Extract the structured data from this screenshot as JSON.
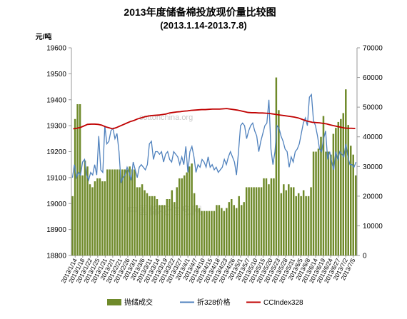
{
  "chart_data": {
    "type": "bar+line",
    "title": "2013年度储备棉投放现价量比较图",
    "subtitle": "(2013.1.14-2013.7.8)",
    "y_left_label": "元/吨",
    "y_left_ticks": [
      18800,
      18900,
      19000,
      19100,
      19200,
      19300,
      19400,
      19500,
      19600
    ],
    "y_right_ticks": [
      0,
      10000,
      20000,
      30000,
      40000,
      50000,
      60000,
      70000
    ],
    "ylim_left": [
      18800,
      19600
    ],
    "ylim_right": [
      0,
      70000
    ],
    "x_tick_labels": [
      "2013/1/14",
      "2013/1/18",
      "2013/1/22",
      "2013/1/25",
      "2013/1/31",
      "2013/2/1",
      "2013/2/21",
      "2013/2/26",
      "2013/3/1",
      "2013/3/6",
      "2013/3/11",
      "2013/3/14",
      "2013/3/19",
      "2013/3/22",
      "2013/3/27",
      "2013/4/1",
      "2013/4/7",
      "2013/4/10",
      "2013/4/15",
      "2013/4/18",
      "2013/4/23",
      "2013/4/26",
      "2013/5/1",
      "2013/5/7",
      "2013/5/10",
      "2013/5/15",
      "2013/5/20",
      "2013/5/23",
      "2013/5/28",
      "2013/5/31",
      "2013/6/5",
      "2013/6/8",
      "2013/6/14",
      "2013/6/19",
      "2013/6/24",
      "2013/6/27",
      "2013/7/2",
      "2013/7/5"
    ],
    "legend": [
      "抛储成交",
      "折328价格",
      "CCIndex328"
    ],
    "legend_position": "bottom",
    "colors": {
      "bars": "#6f8a2a",
      "price": "#4f81bd",
      "index": "#c00000",
      "axis": "#999999"
    },
    "volume": [
      20000,
      46000,
      51000,
      51000,
      27000,
      32000,
      30000,
      24000,
      23000,
      25000,
      26000,
      26000,
      25000,
      25000,
      29000,
      29000,
      29000,
      29000,
      29000,
      29000,
      29000,
      29000,
      29000,
      30000,
      29000,
      29000,
      23000,
      23000,
      24000,
      22000,
      21000,
      20000,
      20000,
      20000,
      19000,
      17000,
      17000,
      17000,
      19000,
      19000,
      22000,
      18000,
      23000,
      26000,
      26000,
      27000,
      28000,
      30000,
      31000,
      21000,
      17000,
      16000,
      15000,
      15000,
      15000,
      15000,
      15000,
      15000,
      17000,
      17000,
      16000,
      15000,
      16000,
      18000,
      19000,
      17000,
      16000,
      20000,
      17000,
      18000,
      23000,
      23000,
      23000,
      23000,
      23000,
      23000,
      23000,
      26000,
      26000,
      24000,
      26000,
      26000,
      60000,
      49000,
      21000,
      24000,
      22000,
      24000,
      23000,
      23000,
      20000,
      21000,
      20000,
      22000,
      20000,
      20000,
      23000,
      35000,
      35000,
      36000,
      40000,
      47000,
      35000,
      35000,
      34000,
      41000,
      43000,
      45000,
      46000,
      48000,
      56000,
      44000,
      37000,
      34000,
      27000
    ],
    "price": [
      19100,
      19150,
      19100,
      19120,
      19110,
      19160,
      19170,
      19110,
      19090,
      19120,
      19110,
      19150,
      19110,
      19260,
      19130,
      19120,
      19300,
      19230,
      19240,
      19280,
      19290,
      19250,
      19270,
      19200,
      19080,
      19100,
      19110,
      19140,
      19120,
      19090,
      19160,
      19130,
      19100,
      19140,
      19150,
      19140,
      19130,
      19150,
      19230,
      19240,
      19170,
      19200,
      19200,
      19190,
      19200,
      19160,
      19190,
      19200,
      19170,
      19160,
      19200,
      19190,
      19180,
      19150,
      19180,
      19150,
      19220,
      19120,
      19200,
      19220,
      19180,
      19120,
      19150,
      19140,
      19170,
      19160,
      19140,
      19180,
      19140,
      19150,
      19130,
      19140,
      19120,
      19130,
      19140,
      19170,
      19150,
      19180,
      19200,
      19180,
      19160,
      19110,
      19200,
      19300,
      19310,
      19300,
      19250,
      19280,
      19300,
      19310,
      19280,
      19260,
      19200,
      19240,
      19270,
      19300,
      19310,
      19400,
      19210,
      19150,
      19200,
      19300,
      19290,
      19260,
      19240,
      19210,
      19200,
      19140,
      19180,
      19160,
      19200,
      19210,
      19230,
      19270,
      19310,
      19330,
      19300,
      19410,
      19420,
      19320,
      19300,
      19260,
      19210,
      19200,
      19250,
      19280,
      19170,
      19200,
      19160,
      19130,
      19200,
      19170,
      19200,
      19190,
      19180,
      19230,
      19180,
      19150,
      19150,
      19140,
      19160
    ],
    "index": [
      19288,
      19290,
      19293,
      19299,
      19305,
      19306,
      19306,
      19305,
      19302,
      19296,
      19292,
      19288,
      19292,
      19298,
      19304,
      19310,
      19316,
      19320,
      19326,
      19330,
      19334,
      19337,
      19339,
      19340,
      19341,
      19343,
      19345,
      19349,
      19351,
      19353,
      19354,
      19356,
      19357,
      19359,
      19360,
      19361,
      19362,
      19362,
      19363,
      19364,
      19364,
      19364,
      19365,
      19366,
      19364,
      19362,
      19360,
      19357,
      19354,
      19351,
      19350,
      19350,
      19349,
      19349,
      19348,
      19347,
      19345,
      19343,
      19341,
      19339,
      19337,
      19335,
      19333,
      19330,
      19325,
      19320,
      19316,
      19313,
      19312,
      19311,
      19309,
      19307,
      19303,
      19300,
      19297,
      19294,
      19291,
      19290,
      19290,
      19289
    ]
  },
  "watermarks": [
    "cottonchina.org",
    "中国棉花信息网"
  ]
}
